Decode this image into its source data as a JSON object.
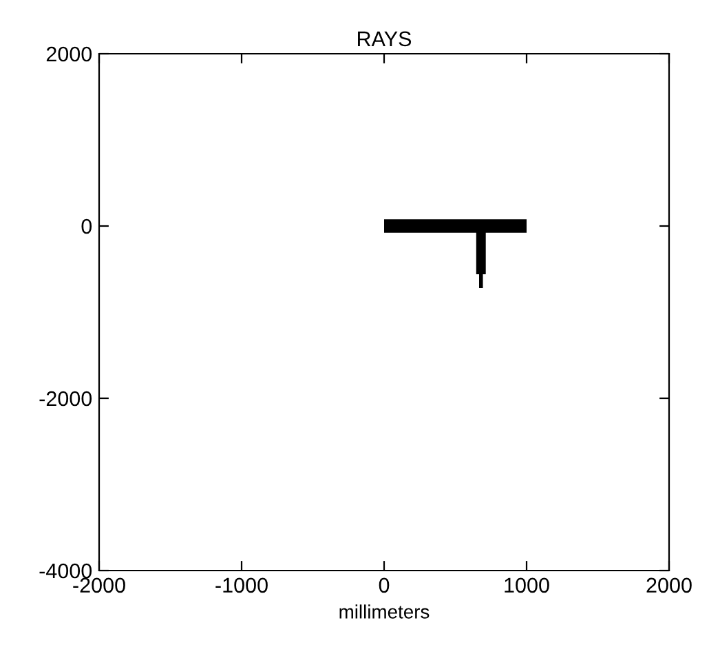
{
  "chart_data": {
    "type": "line",
    "title": "RAYS",
    "xlabel": "millimeters",
    "series": [
      {
        "color": "#000000",
        "x": [
          0,
          1000
        ],
        "values": [
          0,
          0
        ]
      },
      {
        "color": "#000000",
        "x": [
          680,
          680
        ],
        "values": [
          0,
          -560
        ]
      },
      {
        "color": "#000000",
        "x": [
          680,
          680
        ],
        "values": [
          -560,
          -720
        ]
      }
    ],
    "xlim": [
      -2000,
      2000
    ],
    "ylim": [
      -4000,
      2000
    ],
    "xticks": [
      -2000,
      -1000,
      0,
      1000,
      2000
    ],
    "yticks": [
      -4000,
      -2000,
      0,
      2000
    ],
    "grid": false,
    "legend": false
  }
}
